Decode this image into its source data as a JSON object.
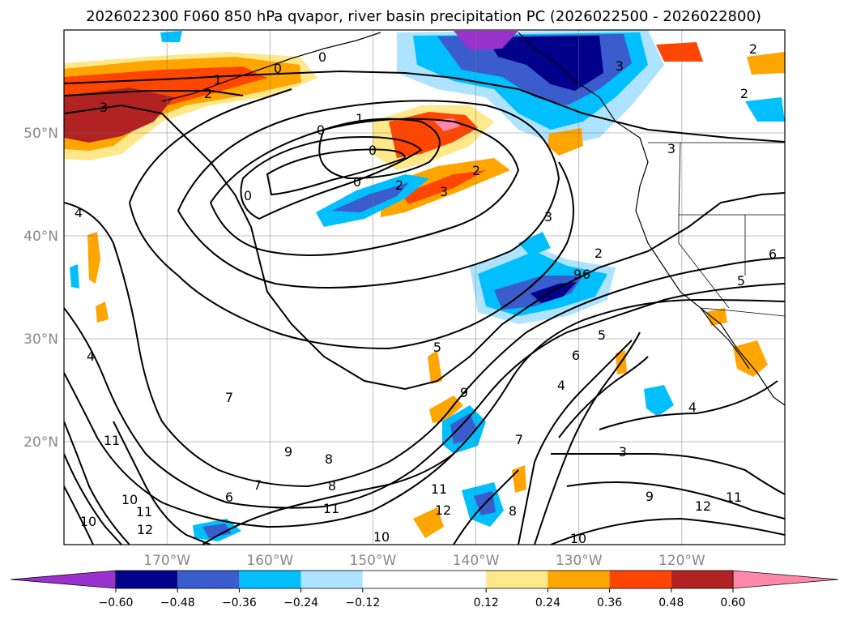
{
  "chart_data": {
    "type": "heatmap",
    "title": "2026022300 F060 850 hPa qvapor, river basin precipitation PC (2026022500 - 2026022800)",
    "xlabel": "",
    "ylabel": "",
    "xlim": [
      -180,
      -110
    ],
    "ylim": [
      10,
      60
    ],
    "grid": true,
    "lat_ticks": [
      {
        "value": 20,
        "label": "20°N"
      },
      {
        "value": 30,
        "label": "30°N"
      },
      {
        "value": 40,
        "label": "40°N"
      },
      {
        "value": 50,
        "label": "50°N"
      }
    ],
    "lon_ticks": [
      {
        "value": -170,
        "label": "170°W"
      },
      {
        "value": -160,
        "label": "160°W"
      },
      {
        "value": -150,
        "label": "150°W"
      },
      {
        "value": -140,
        "label": "140°W"
      },
      {
        "value": -130,
        "label": "130°W"
      },
      {
        "value": -120,
        "label": "120°W"
      }
    ],
    "colorbar": {
      "placement": "bottom",
      "extend": "both",
      "boundaries": [
        -0.72,
        -0.6,
        -0.48,
        -0.36,
        -0.24,
        -0.12,
        0.12,
        0.24,
        0.36,
        0.48,
        0.6,
        0.72
      ],
      "colors": [
        "#9932cc",
        "#00008b",
        "#3a5ccc",
        "#00bfff",
        "#aee3ff",
        "#ffffff",
        "#ffe88a",
        "#ffa500",
        "#ff4500",
        "#b22222",
        "#ff88aa"
      ],
      "ticks": [
        {
          "value": -0.6,
          "label": "−0.60"
        },
        {
          "value": -0.48,
          "label": "−0.48"
        },
        {
          "value": -0.36,
          "label": "−0.36"
        },
        {
          "value": -0.24,
          "label": "−0.24"
        },
        {
          "value": -0.12,
          "label": "−0.12"
        },
        {
          "value": 0.12,
          "label": "0.12"
        },
        {
          "value": 0.24,
          "label": "0.24"
        },
        {
          "value": 0.36,
          "label": "0.36"
        },
        {
          "value": 0.48,
          "label": "0.48"
        },
        {
          "value": 0.6,
          "label": "0.60"
        }
      ]
    },
    "contour_labels": [
      "0",
      "0",
      "0",
      "0",
      "0",
      "0",
      "1",
      "1",
      "2",
      "2",
      "2",
      "2",
      "2",
      "2",
      "3",
      "3",
      "3",
      "3",
      "3",
      "3",
      "4",
      "4",
      "4",
      "4",
      "5",
      "5",
      "5",
      "6",
      "6",
      "6",
      "6",
      "7",
      "7",
      "7",
      "8",
      "8",
      "8",
      "9",
      "9",
      "9",
      "9",
      "10",
      "10",
      "10",
      "10",
      "11",
      "11",
      "11",
      "11",
      "11",
      "12",
      "12",
      "12"
    ]
  }
}
